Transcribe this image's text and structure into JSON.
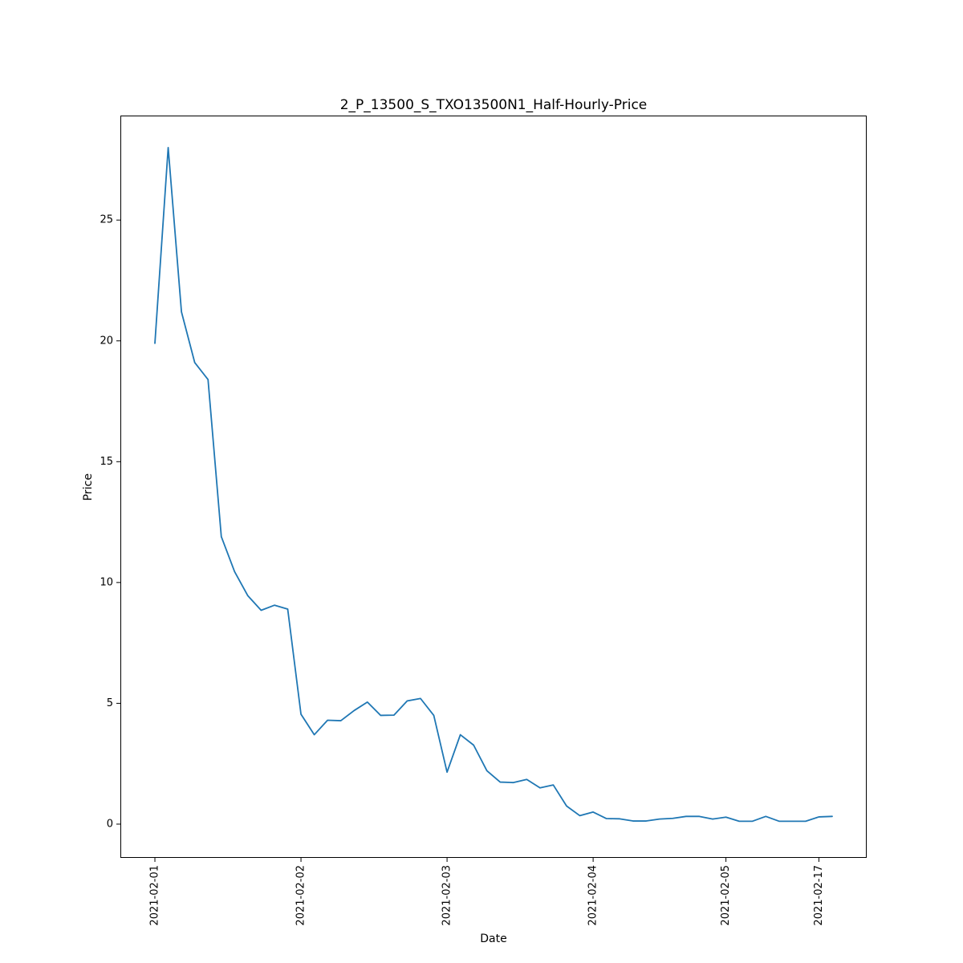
{
  "chart_data": {
    "type": "line",
    "title": "2_P_13500_S_TXO13500N1_Half-Hourly-Price",
    "xlabel": "Date",
    "ylabel": "Price",
    "ylim": [
      -1.3964,
      29.3245
    ],
    "grid": false,
    "legend": "none",
    "x_ticks": [
      "2021-02-01",
      "2021-02-02",
      "2021-02-03",
      "2021-02-04",
      "2021-02-05",
      "2021-02-17"
    ],
    "y_ticks": [
      0,
      5,
      10,
      15,
      20,
      25
    ],
    "line_color": "#1f77b4",
    "x_index_range": [
      -2.6,
      53.6
    ],
    "series": [
      {
        "x": [
          "2021-02-01",
          "2021-02-01",
          "2021-02-01",
          "2021-02-01",
          "2021-02-01",
          "2021-02-01",
          "2021-02-01",
          "2021-02-01",
          "2021-02-01",
          "2021-02-01",
          "2021-02-01",
          "2021-02-02",
          "2021-02-02",
          "2021-02-02",
          "2021-02-02",
          "2021-02-02",
          "2021-02-02",
          "2021-02-02",
          "2021-02-02",
          "2021-02-02",
          "2021-02-02",
          "2021-02-02",
          "2021-02-03",
          "2021-02-03",
          "2021-02-03",
          "2021-02-03",
          "2021-02-03",
          "2021-02-03",
          "2021-02-03",
          "2021-02-03",
          "2021-02-03",
          "2021-02-03",
          "2021-02-03",
          "2021-02-04",
          "2021-02-04",
          "2021-02-04",
          "2021-02-04",
          "2021-02-04",
          "2021-02-04",
          "2021-02-04",
          "2021-02-04",
          "2021-02-04",
          "2021-02-04",
          "2021-02-05",
          "2021-02-05",
          "2021-02-05",
          "2021-02-05",
          "2021-02-05",
          "2021-02-05",
          "2021-02-05",
          "2021-02-17",
          "2021-02-17"
        ],
        "values": [
          19.9,
          28.0,
          21.2,
          19.1,
          18.4,
          11.9,
          10.45,
          9.45,
          8.85,
          9.06,
          8.9,
          4.55,
          3.7,
          4.3,
          4.28,
          4.7,
          5.05,
          4.5,
          4.51,
          5.1,
          5.2,
          4.5,
          2.15,
          3.7,
          3.27,
          2.21,
          1.74,
          1.72,
          1.85,
          1.5,
          1.62,
          0.75,
          0.35,
          0.5,
          0.23,
          0.22,
          0.13,
          0.13,
          0.21,
          0.24,
          0.32,
          0.32,
          0.21,
          0.29,
          0.12,
          0.12,
          0.32,
          0.12,
          0.12,
          0.12,
          0.3,
          0.32
        ]
      }
    ]
  }
}
